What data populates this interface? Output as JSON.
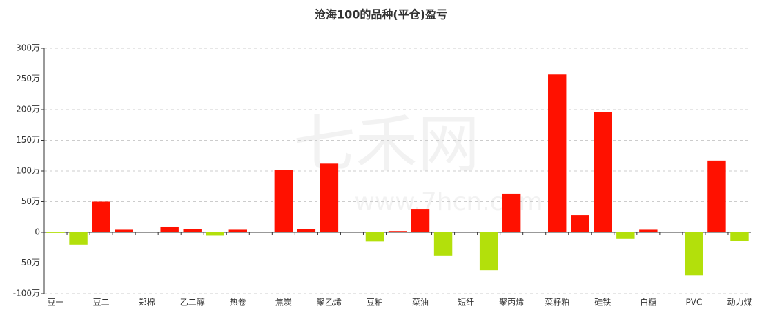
{
  "chart_data": {
    "type": "bar",
    "title": "沧海100的品种(平仓)盈亏",
    "watermark": [
      "七禾网",
      "www.7hcn.com"
    ],
    "categories": [
      "豆一",
      null,
      "豆二",
      null,
      "郑棉",
      null,
      "乙二醇",
      null,
      "热卷",
      null,
      "焦炭",
      null,
      "聚乙烯",
      null,
      "豆粕",
      null,
      "菜油",
      null,
      "短纤",
      null,
      "聚丙烯",
      null,
      "菜籽粕",
      null,
      "硅铁",
      null,
      "白糖",
      null,
      "PVC",
      null,
      "动力煤"
    ],
    "values": [
      -1,
      -20,
      50,
      4,
      0,
      9,
      5,
      -5,
      4,
      0.5,
      102,
      5,
      112,
      1,
      -15,
      2,
      37,
      -38,
      0,
      -62,
      63,
      0.5,
      257,
      28,
      196,
      -11,
      4,
      0,
      -70,
      117,
      -14
    ],
    "positive_color": "#ff1100",
    "negative_color": "#b3e00b",
    "ylim": [
      -100,
      300
    ],
    "yticks": [
      {
        "value": -100,
        "label": "-100万"
      },
      {
        "value": -50,
        "label": "-50万"
      },
      0,
      {
        "value": 50,
        "label": "50万"
      },
      {
        "value": 100,
        "label": "100万"
      },
      {
        "value": 150,
        "label": "150万"
      },
      {
        "value": 200,
        "label": "200万"
      },
      {
        "value": 250,
        "label": "250万"
      },
      {
        "value": 300,
        "label": "300万"
      }
    ],
    "grid": true
  }
}
